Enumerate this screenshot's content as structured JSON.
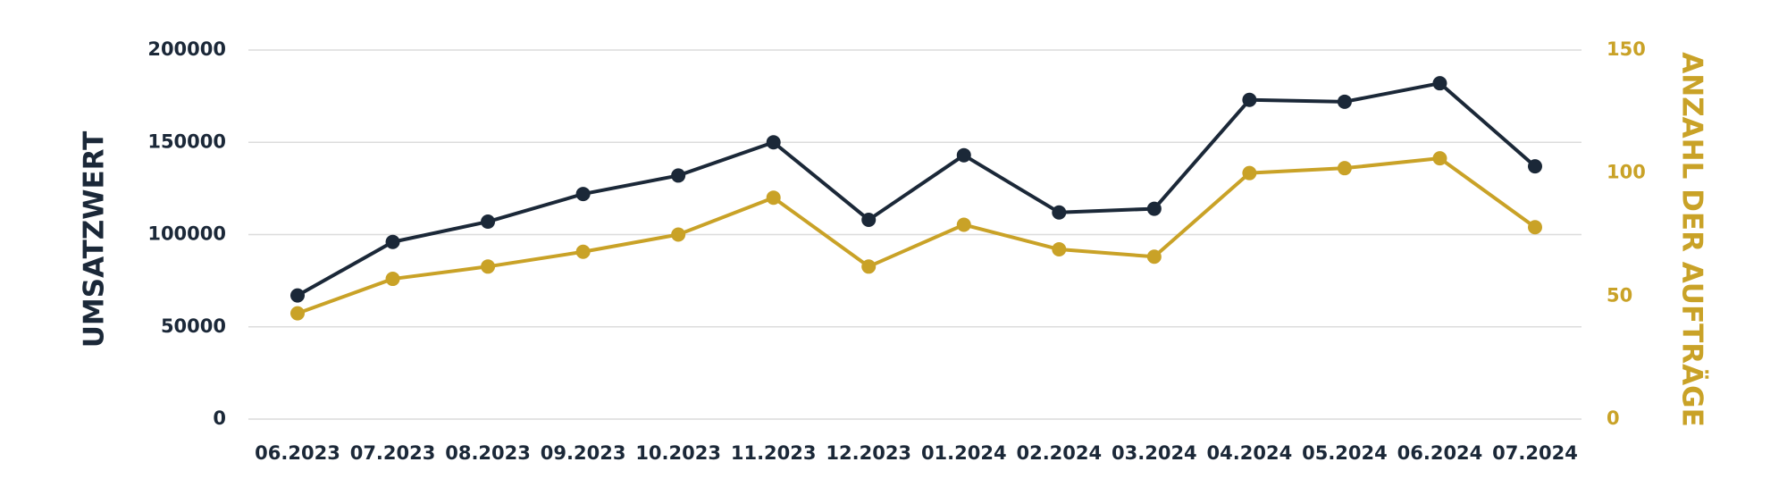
{
  "chart_data": {
    "type": "line",
    "y_label": "UMSATZWERT",
    "y2_label": "ANZAHL DER AUFTRÄGE",
    "categories": [
      "06.2023",
      "07.2023",
      "08.2023",
      "09.2023",
      "10.2023",
      "11.2023",
      "12.2023",
      "01.2024",
      "02.2024",
      "03.2024",
      "04.2024",
      "05.2024",
      "06.2024",
      "07.2024"
    ],
    "series": [
      {
        "color": "#1b2838",
        "values": [
          67000,
          96000,
          107000,
          122000,
          132000,
          150000,
          108000,
          143000,
          112000,
          114000,
          173000,
          172000,
          182000,
          137000
        ]
      },
      {
        "color": "#c9a227",
        "axis": "y2",
        "values": [
          43,
          57,
          62,
          68,
          75,
          90,
          62,
          79,
          69,
          66,
          100,
          102,
          106,
          78
        ]
      }
    ],
    "ylim": [
      0,
      200000
    ],
    "yticks": [
      0,
      50000,
      100000,
      150000,
      200000
    ],
    "y2lim": [
      0,
      150
    ],
    "y2ticks": [
      0,
      50,
      100,
      150
    ],
    "grid": true
  }
}
